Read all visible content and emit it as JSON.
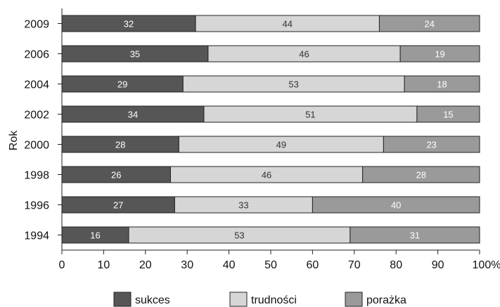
{
  "chart_data": {
    "type": "bar",
    "orientation": "horizontal",
    "stacked": true,
    "ylabel": "Rok",
    "xlabel": "",
    "categories": [
      "2009",
      "2006",
      "2004",
      "2002",
      "2000",
      "1998",
      "1996",
      "1994"
    ],
    "series": [
      {
        "name": "sukces",
        "values": [
          32,
          35,
          29,
          34,
          28,
          26,
          27,
          16
        ],
        "color": "#565656",
        "label_color": "#ffffff"
      },
      {
        "name": "trudności",
        "values": [
          44,
          46,
          53,
          51,
          49,
          46,
          33,
          53
        ],
        "color": "#d6d6d6",
        "label_color": "#333333"
      },
      {
        "name": "porażka",
        "values": [
          24,
          19,
          18,
          15,
          23,
          28,
          40,
          31
        ],
        "color": "#9a9a9a",
        "label_color": "#ffffff"
      }
    ],
    "xlim": [
      0,
      100
    ],
    "x_ticks": [
      0,
      10,
      20,
      30,
      40,
      50,
      60,
      70,
      80,
      90,
      100
    ],
    "x_tick_labels": [
      "0",
      "10",
      "20",
      "30",
      "40",
      "50",
      "60",
      "70",
      "80",
      "90",
      "100%"
    ],
    "grid": false,
    "legend_position": "bottom"
  }
}
